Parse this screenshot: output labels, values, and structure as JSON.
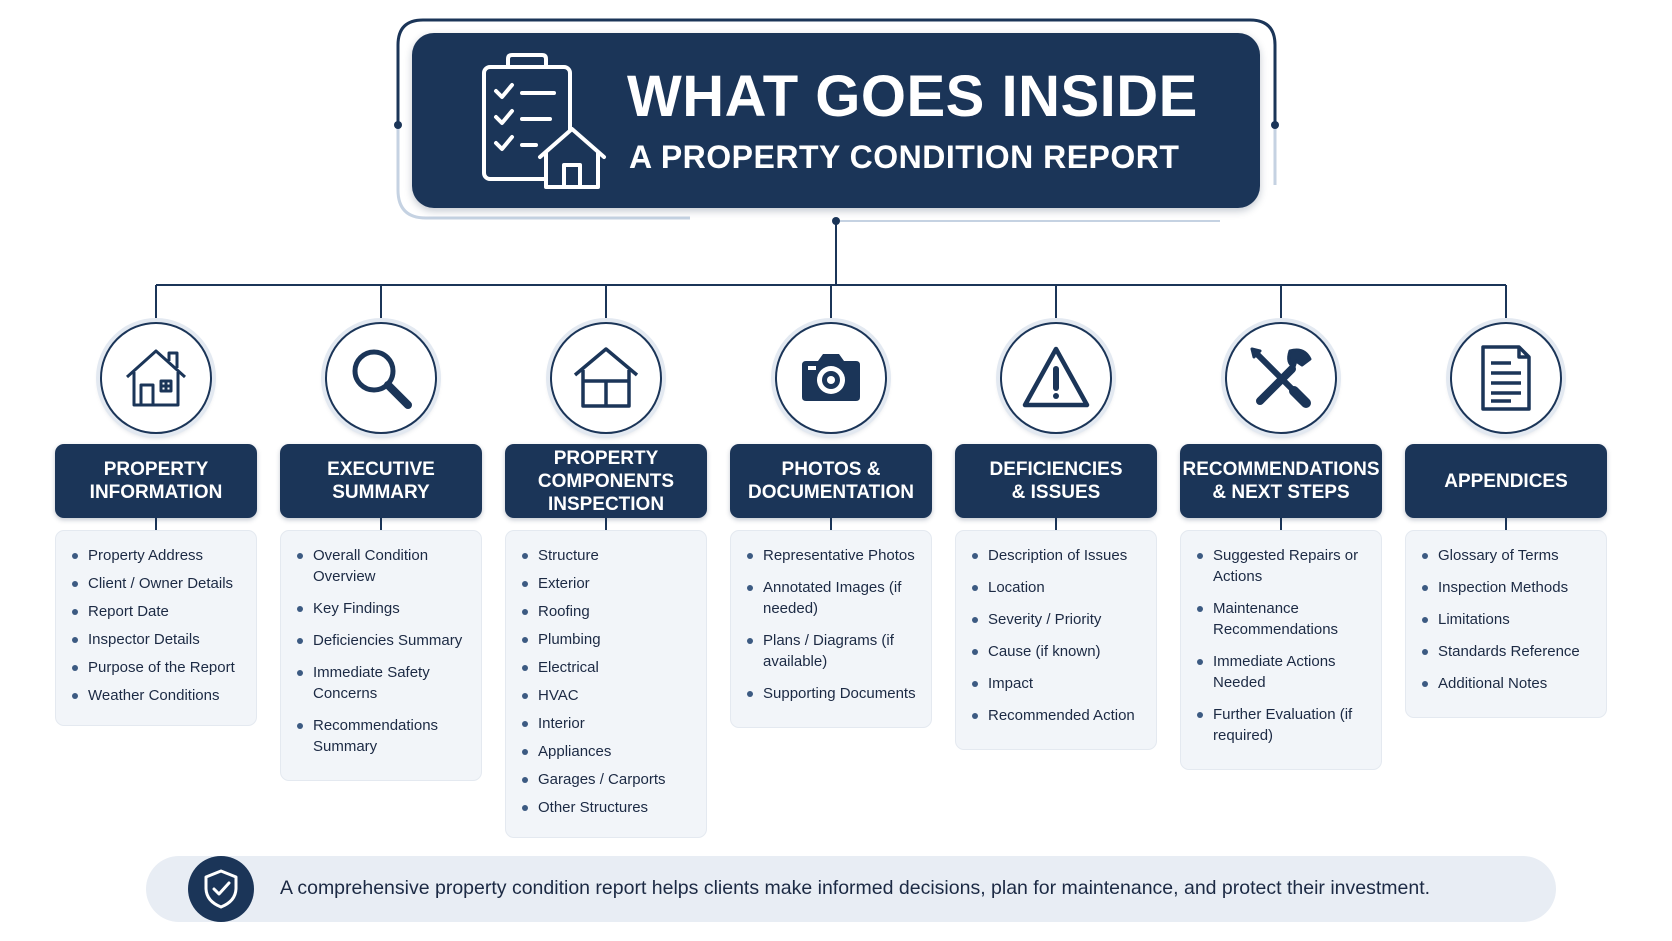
{
  "title": {
    "main": "WHAT GOES INSIDE",
    "sub": "A PROPERTY CONDITION REPORT",
    "icon": "clipboard-checklist-house-icon"
  },
  "colors": {
    "navy": "#1b3558",
    "panel": "#f2f5f9",
    "bullet": "#3c5a82"
  },
  "sections": [
    {
      "id": "property-information",
      "icon": "house-icon",
      "heading": "PROPERTY\nINFORMATION",
      "items": [
        "Property Address",
        "Client / Owner Details",
        "Report Date",
        "Inspector Details",
        "Purpose of the Report",
        "Weather Conditions"
      ]
    },
    {
      "id": "executive-summary",
      "icon": "magnifying-glass-icon",
      "heading": "EXECUTIVE\nSUMMARY",
      "items": [
        "Overall Condition Overview",
        "Key Findings",
        "Deficiencies Summary",
        "Immediate Safety Concerns",
        "Recommendations Summary"
      ]
    },
    {
      "id": "property-components-inspection",
      "icon": "house-outline-icon",
      "heading": "PROPERTY\nCOMPONENTS\nINSPECTION",
      "items": [
        "Structure",
        "Exterior",
        "Roofing",
        "Plumbing",
        "Electrical",
        "HVAC",
        "Interior",
        "Appliances",
        "Garages / Carports",
        "Other Structures"
      ]
    },
    {
      "id": "photos-documentation",
      "icon": "camera-icon",
      "heading": "PHOTOS &\nDOCUMENTATION",
      "items": [
        "Representative Photos",
        "Annotated Images (if needed)",
        "Plans / Diagrams (if available)",
        "Supporting Documents"
      ]
    },
    {
      "id": "deficiencies-issues",
      "icon": "warning-triangle-icon",
      "heading": "DEFICIENCIES\n& ISSUES",
      "items": [
        "Description of Issues",
        "Location",
        "Severity / Priority",
        "Cause (if known)",
        "Impact",
        "Recommended Action"
      ]
    },
    {
      "id": "recommendations-next-steps",
      "icon": "wrench-screwdriver-icon",
      "heading": "RECOMMENDATIONS\n& NEXT STEPS",
      "items": [
        "Suggested Repairs or Actions",
        "Maintenance Recommendations",
        "Immediate Actions Needed",
        "Further Evaluation (if required)"
      ]
    },
    {
      "id": "appendices",
      "icon": "document-icon",
      "heading": "APPENDICES",
      "items": [
        "Glossary of Terms",
        "Inspection Methods",
        "Limitations",
        "Standards Reference",
        "Additional Notes"
      ]
    }
  ],
  "footer": {
    "icon": "shield-check-icon",
    "text": "A comprehensive property condition report helps clients make informed decisions, plan for maintenance, and protect their investment."
  }
}
